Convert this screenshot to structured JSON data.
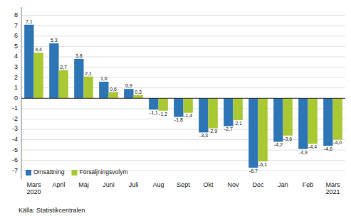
{
  "chart_data": {
    "type": "bar",
    "categories": [
      "Mars\n2020",
      "April",
      "Maj",
      "Juni",
      "Juli",
      "Aug",
      "Sept",
      "Okt",
      "Nov",
      "Dec",
      "Jan",
      "Feb",
      "Mars\n2021"
    ],
    "series": [
      {
        "name": "Omsättning",
        "color": "#2E75B6",
        "values": [
          7.1,
          5.3,
          3.8,
          1.6,
          0.9,
          -1.1,
          -1.8,
          -3.3,
          -2.7,
          -6.7,
          -4.2,
          -4.9,
          -4.6
        ],
        "value_labels": [
          "7,1",
          "5,3",
          "3,8",
          "1,6",
          "0,9",
          "-1,1",
          "-1,8",
          "-3,3",
          "-2,7",
          "-6,7",
          "-4,2",
          "-4,9",
          "-4,6"
        ]
      },
      {
        "name": "Försäljningsvolym",
        "color": "#A9C832",
        "values": [
          4.4,
          2.7,
          2.1,
          0.6,
          0.3,
          -1.2,
          -1.4,
          -2.9,
          -2.1,
          -6.1,
          -3.6,
          -4.4,
          -4.0
        ],
        "value_labels": [
          "4,4",
          "2,7",
          "2,1",
          "0,6",
          "0,3",
          "-1,2",
          "-1,4",
          "-2,9",
          "-2,1",
          "-6,1",
          "-3,6",
          "-4,4",
          "-4,0"
        ]
      }
    ],
    "annotations": [
      "Källa: Statistikcentralen"
    ],
    "ylim": [
      -7.8,
      8.8
    ],
    "yticks": [
      -7,
      -6,
      -5,
      -4,
      -3,
      -2,
      -1,
      0,
      1,
      2,
      3,
      4,
      5,
      6,
      7,
      8
    ],
    "grid": true,
    "legend": "lower left",
    "data_labels": true
  }
}
